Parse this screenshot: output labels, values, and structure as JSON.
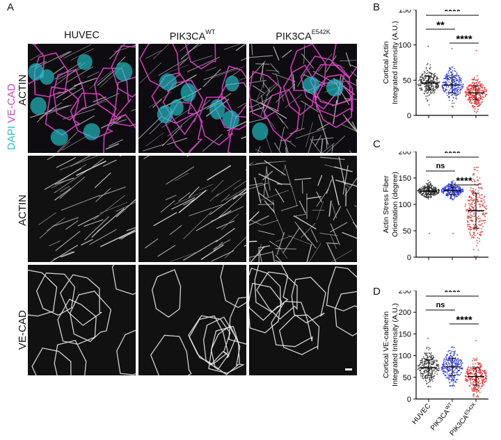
{
  "panel_letters": {
    "a": "A",
    "b": "B",
    "c": "C",
    "d": "D"
  },
  "columns": [
    {
      "label": "HUVEC",
      "sup": ""
    },
    {
      "label": "PIK3CA",
      "sup": "WT"
    },
    {
      "label": "PIK3CA",
      "sup": "E542K"
    }
  ],
  "rows": {
    "merge": {
      "dapi": "DAPI",
      "vecad": "VE-CAD",
      "actin": "ACTIN"
    },
    "actin": "ACTIN",
    "vecad": "VE-CAD"
  },
  "colors": {
    "dapi": "#22c6cc",
    "vecad": "#e040c8",
    "huvec": "#333333",
    "wt": "#2233ee",
    "e542k": "#ff1111"
  },
  "chart_data": [
    {
      "panel": "B",
      "type": "scatter",
      "ylabel": "Cortical Actin\nIntegrated Intensity (A.U.)",
      "ylim": [
        0,
        150
      ],
      "yticks": [
        0,
        50,
        100,
        150
      ],
      "groups": [
        "HUVEC",
        "PIK3CA WT",
        "PIK3CA E542K"
      ],
      "series": [
        {
          "mean": 46,
          "sd": 10,
          "min": 15,
          "max": 98
        },
        {
          "mean": 43,
          "sd": 11,
          "min": 12,
          "max": 95
        },
        {
          "mean": 32,
          "sd": 10,
          "min": 4,
          "max": 92
        }
      ],
      "significance": [
        {
          "pair": [
            0,
            2
          ],
          "label": "****"
        },
        {
          "pair": [
            0,
            1
          ],
          "label": "**"
        },
        {
          "pair": [
            1,
            2
          ],
          "label": "****"
        }
      ]
    },
    {
      "panel": "C",
      "type": "scatter",
      "ylabel": "Actin Stress Fiber\nOrientation  (degree)",
      "ylim": [
        0,
        200
      ],
      "yticks": [
        0,
        50,
        100,
        150,
        200
      ],
      "groups": [
        "HUVEC",
        "PIK3CA WT",
        "PIK3CA E542K"
      ],
      "series": [
        {
          "mean": 125,
          "sd": 6,
          "min": 45,
          "max": 145
        },
        {
          "mean": 126,
          "sd": 7,
          "min": 45,
          "max": 145
        },
        {
          "mean": 88,
          "sd": 33,
          "min": 2,
          "max": 170
        }
      ],
      "significance": [
        {
          "pair": [
            0,
            2
          ],
          "label": "****"
        },
        {
          "pair": [
            0,
            1
          ],
          "label": "ns"
        },
        {
          "pair": [
            1,
            2
          ],
          "label": "****"
        }
      ]
    },
    {
      "panel": "D",
      "type": "scatter",
      "ylabel": "Cortical VE-cadherin\nIntegrated Intensity (A.U.)",
      "ylim": [
        0,
        250
      ],
      "yticks": [
        0,
        50,
        100,
        150,
        200,
        250
      ],
      "groups": [
        "HUVEC",
        "PIK3CA WT",
        "PIK3CA E542K"
      ],
      "series": [
        {
          "mean": 72,
          "sd": 18,
          "min": 28,
          "max": 140
        },
        {
          "mean": 74,
          "sd": 20,
          "min": 30,
          "max": 205
        },
        {
          "mean": 52,
          "sd": 20,
          "min": 5,
          "max": 135
        }
      ],
      "significance": [
        {
          "pair": [
            0,
            2
          ],
          "label": "****"
        },
        {
          "pair": [
            0,
            1
          ],
          "label": "ns"
        },
        {
          "pair": [
            1,
            2
          ],
          "label": "****"
        }
      ],
      "xticklabels": [
        {
          "label": "HUVEC",
          "sup": ""
        },
        {
          "label": "PIK3CA",
          "sup": "WT"
        },
        {
          "label": "PIK3CA",
          "sup": "E542K"
        }
      ]
    }
  ]
}
